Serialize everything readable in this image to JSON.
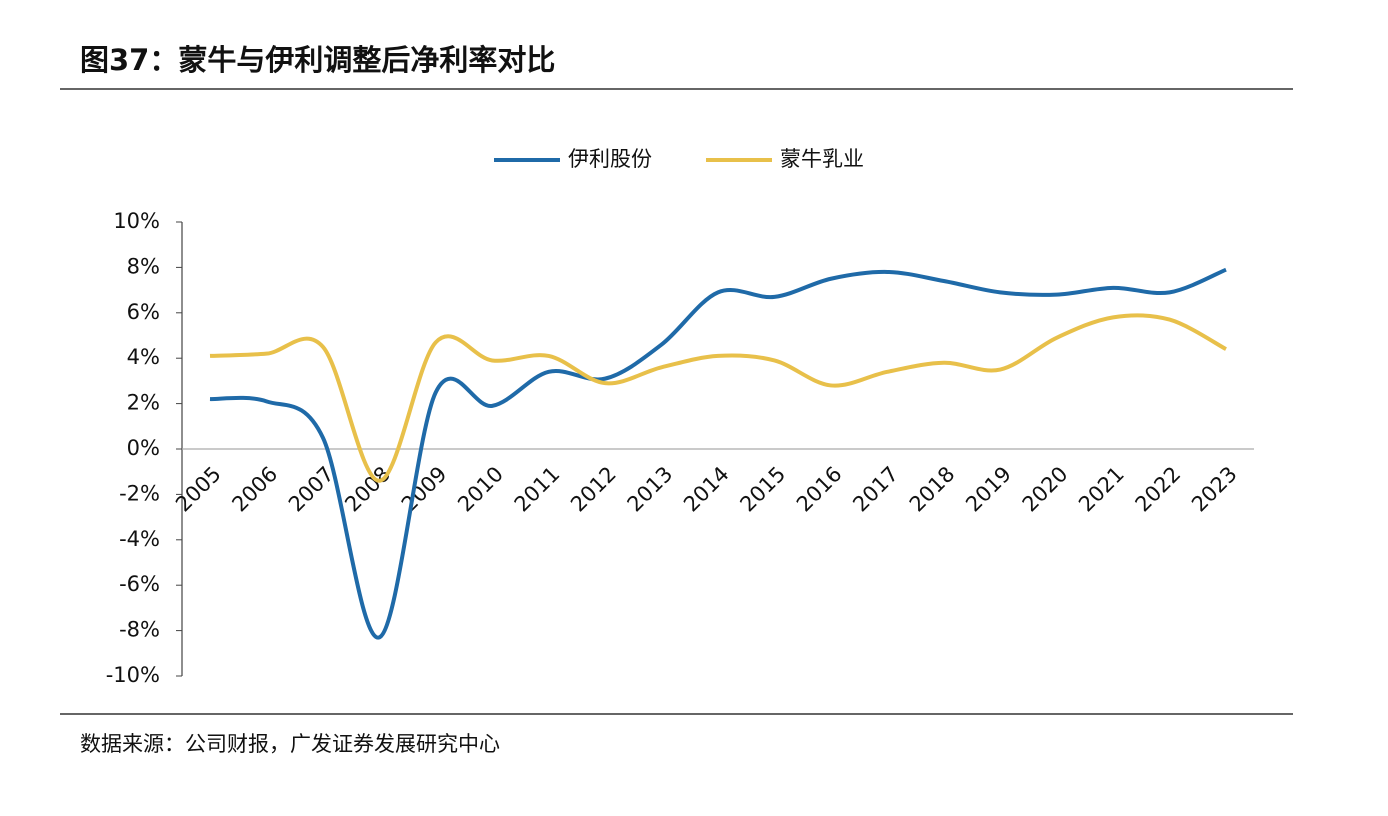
{
  "chart_data": {
    "type": "line",
    "title": "图37：蒙牛与伊利调整后净利率对比",
    "source": "数据来源：公司财报，广发证券发展研究中心",
    "categories": [
      "2005",
      "2006",
      "2007",
      "2008",
      "2009",
      "2010",
      "2011",
      "2012",
      "2013",
      "2014",
      "2015",
      "2016",
      "2017",
      "2018",
      "2019",
      "2020",
      "2021",
      "2022",
      "2023"
    ],
    "series": [
      {
        "name": "伊利股份",
        "color": "#1f6aa8",
        "values": [
          2.2,
          2.1,
          0.5,
          -8.3,
          2.5,
          1.9,
          3.4,
          3.1,
          4.6,
          6.9,
          6.7,
          7.5,
          7.8,
          7.4,
          6.9,
          6.8,
          7.1,
          6.9,
          7.9
        ]
      },
      {
        "name": "蒙牛乳业",
        "color": "#e8c04a",
        "values": [
          4.1,
          4.2,
          4.5,
          -1.4,
          4.7,
          3.9,
          4.1,
          2.9,
          3.6,
          4.1,
          3.9,
          2.8,
          3.4,
          3.8,
          3.5,
          4.9,
          5.8,
          5.7,
          4.4
        ]
      }
    ],
    "ylim": [
      -10,
      10
    ],
    "yticks": [
      {
        "value": 10,
        "label": "10%"
      },
      {
        "value": 8,
        "label": "8%"
      },
      {
        "value": 6,
        "label": "6%"
      },
      {
        "value": 4,
        "label": "4%"
      },
      {
        "value": 2,
        "label": "2%"
      },
      {
        "value": 0,
        "label": "0%"
      },
      {
        "value": -2,
        "label": "-2%"
      },
      {
        "value": -4,
        "label": "-4%"
      },
      {
        "value": -6,
        "label": "-6%"
      },
      {
        "value": -8,
        "label": "-8%"
      },
      {
        "value": -10,
        "label": "-10%"
      }
    ],
    "legend": "top"
  }
}
